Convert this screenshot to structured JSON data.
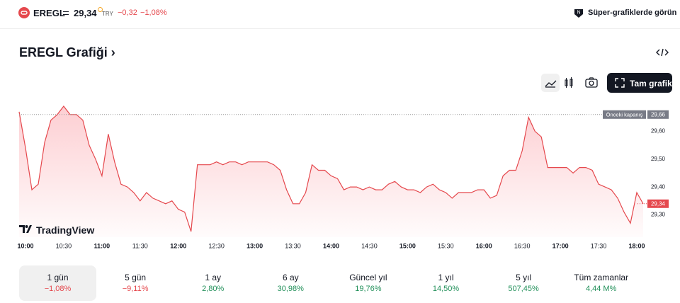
{
  "header": {
    "symbol": "EREGL",
    "price": "29,34",
    "currency": "TRY",
    "change": "−0,32",
    "change_percent": "−1,08%",
    "super_charts_button": "Süper-grafiklerde görün"
  },
  "title": "EREGL Grafiği",
  "full_chart_button": "Tam grafik",
  "chart_data": {
    "type": "area",
    "color": "#e5484d",
    "watermark": "TradingView",
    "x": [
      "09:55",
      "10:00",
      "10:05",
      "10:10",
      "10:15",
      "10:20",
      "10:25",
      "10:30",
      "10:35",
      "10:40",
      "10:45",
      "10:50",
      "10:55",
      "11:00",
      "11:05",
      "11:10",
      "11:15",
      "11:20",
      "11:25",
      "11:30",
      "11:35",
      "11:40",
      "11:45",
      "11:50",
      "11:55",
      "12:00",
      "12:05",
      "12:10",
      "12:15",
      "12:20",
      "12:25",
      "12:30",
      "12:35",
      "12:40",
      "12:45",
      "12:50",
      "12:55",
      "13:00",
      "13:05",
      "13:10",
      "13:15",
      "13:20",
      "13:25",
      "13:30",
      "13:35",
      "13:40",
      "13:45",
      "13:50",
      "13:55",
      "14:00",
      "14:05",
      "14:10",
      "14:15",
      "14:20",
      "14:25",
      "14:30",
      "14:35",
      "14:40",
      "14:45",
      "14:50",
      "14:55",
      "15:00",
      "15:05",
      "15:10",
      "15:15",
      "15:20",
      "15:25",
      "15:30",
      "15:35",
      "15:40",
      "15:45",
      "15:50",
      "15:55",
      "16:00",
      "16:05",
      "16:10",
      "16:15",
      "16:20",
      "16:25",
      "16:30",
      "16:35",
      "16:40",
      "16:45",
      "16:50",
      "16:55",
      "17:00",
      "17:05",
      "17:10",
      "17:15",
      "17:20",
      "17:25",
      "17:30",
      "17:35",
      "17:40",
      "17:45",
      "17:50",
      "17:55",
      "18:00",
      "18:05"
    ],
    "values": [
      29.67,
      29.54,
      29.39,
      29.41,
      29.56,
      29.64,
      29.66,
      29.69,
      29.66,
      29.66,
      29.64,
      29.55,
      29.5,
      29.44,
      29.59,
      29.49,
      29.41,
      29.4,
      29.38,
      29.35,
      29.38,
      29.36,
      29.35,
      29.34,
      29.35,
      29.32,
      29.31,
      29.24,
      29.48,
      29.48,
      29.48,
      29.49,
      29.48,
      29.49,
      29.49,
      29.48,
      29.49,
      29.49,
      29.49,
      29.49,
      29.48,
      29.46,
      29.39,
      29.34,
      29.34,
      29.38,
      29.48,
      29.46,
      29.46,
      29.44,
      29.43,
      29.39,
      29.4,
      29.4,
      29.39,
      29.4,
      29.39,
      29.39,
      29.41,
      29.42,
      29.4,
      29.39,
      29.39,
      29.38,
      29.4,
      29.41,
      29.39,
      29.38,
      29.36,
      29.38,
      29.38,
      29.38,
      29.39,
      29.39,
      29.36,
      29.37,
      29.44,
      29.46,
      29.46,
      29.53,
      29.65,
      29.6,
      29.58,
      29.47,
      29.47,
      29.47,
      29.47,
      29.45,
      29.47,
      29.47,
      29.46,
      29.41,
      29.4,
      29.39,
      29.36,
      29.31,
      29.27,
      29.38,
      29.34
    ],
    "xlim": [
      "09:55",
      "18:05"
    ],
    "xticks": [
      "10:00",
      "10:30",
      "11:00",
      "11:30",
      "12:00",
      "12:30",
      "13:00",
      "13:30",
      "14:00",
      "14:30",
      "15:00",
      "15:30",
      "16:00",
      "16:30",
      "17:00",
      "17:30",
      "18:00"
    ],
    "ylim": [
      29.22,
      29.69
    ],
    "yticks": [
      {
        "value": 29.3,
        "label": "29,30"
      },
      {
        "value": 29.4,
        "label": "29,40"
      },
      {
        "value": 29.5,
        "label": "29,50"
      },
      {
        "value": 29.6,
        "label": "29,60"
      }
    ],
    "grid": false,
    "previous_close": {
      "name": "Önceki kapanış",
      "value": 29.66,
      "label": "29,66"
    },
    "last_price": {
      "value": 29.34,
      "label": "29,34"
    }
  },
  "periods": [
    {
      "label": "1 gün",
      "change": "−1,08%"
    },
    {
      "label": "5 gün",
      "change": "−9,11%"
    },
    {
      "label": "1 ay",
      "change": "2,80%"
    },
    {
      "label": "6 ay",
      "change": "30,98%"
    },
    {
      "label": "Güncel yıl",
      "change": "19,76%"
    },
    {
      "label": "1 yıl",
      "change": "14,50%"
    },
    {
      "label": "5 yıl",
      "change": "507,45%"
    },
    {
      "label": "Tüm zamanlar",
      "change": "4,44 M%"
    }
  ]
}
